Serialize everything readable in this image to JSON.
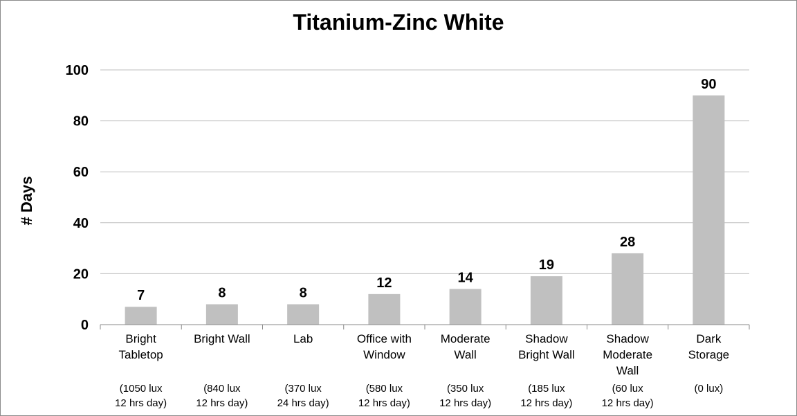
{
  "chart_data": {
    "type": "bar",
    "title": "Titanium-Zinc White",
    "ylabel": "# Days",
    "xlabel": "",
    "ylim": [
      0,
      100
    ],
    "yticks": [
      0,
      20,
      40,
      60,
      80,
      100
    ],
    "grid": true,
    "legend": "none",
    "bar_color": "#c0c0c0",
    "categories": [
      {
        "name": [
          "Bright",
          "Tabletop"
        ],
        "conditions": [
          "(1050 lux",
          "12 hrs day)"
        ]
      },
      {
        "name": [
          "Bright Wall"
        ],
        "conditions": [
          "(840 lux",
          "12 hrs day)"
        ]
      },
      {
        "name": [
          "Lab"
        ],
        "conditions": [
          "(370 lux",
          "24 hrs day)"
        ]
      },
      {
        "name": [
          "Office with",
          "Window"
        ],
        "conditions": [
          "(580 lux",
          "12 hrs day)"
        ]
      },
      {
        "name": [
          "Moderate",
          "Wall"
        ],
        "conditions": [
          "(350 lux",
          "12 hrs day)"
        ]
      },
      {
        "name": [
          "Shadow",
          "Bright Wall"
        ],
        "conditions": [
          "(185 lux",
          "12 hrs day)"
        ]
      },
      {
        "name": [
          "Shadow",
          "Moderate",
          "Wall"
        ],
        "conditions": [
          "(60 lux",
          "12 hrs day)"
        ]
      },
      {
        "name": [
          "Dark",
          "Storage"
        ],
        "conditions": [
          "(0 lux)"
        ]
      }
    ],
    "values": [
      7,
      8,
      8,
      12,
      14,
      19,
      28,
      90
    ]
  }
}
